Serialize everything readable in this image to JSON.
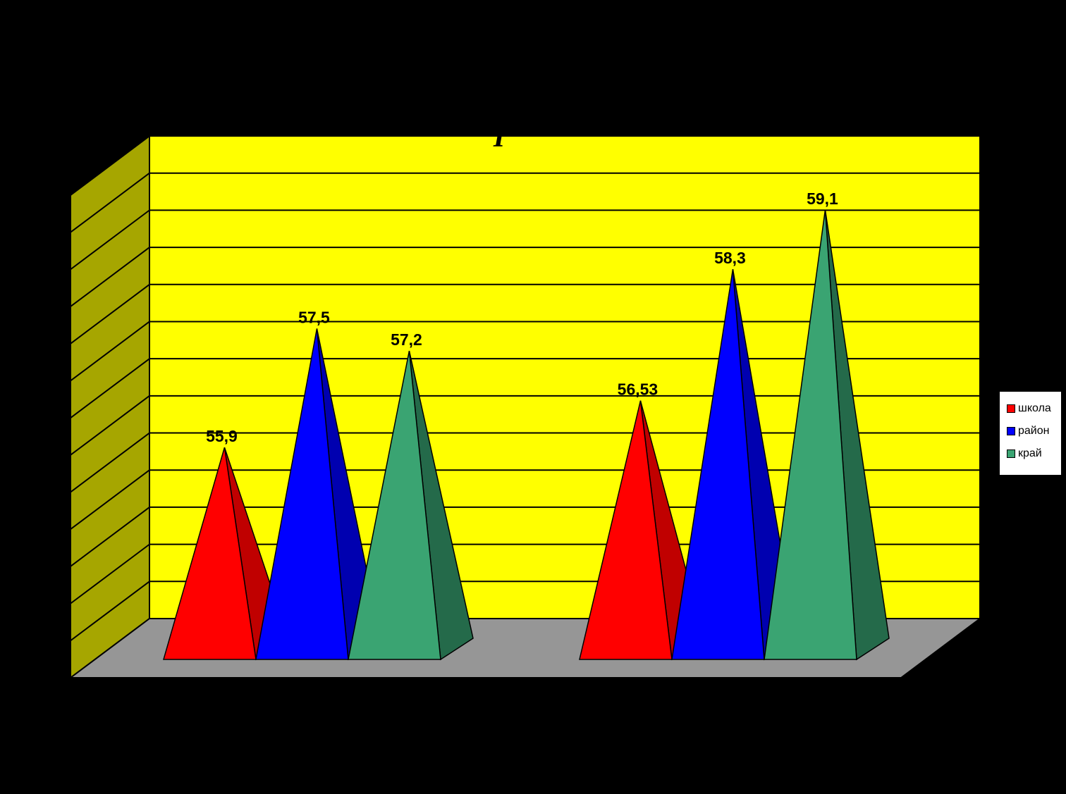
{
  "chart_data": {
    "type": "bar",
    "shape": "pyramid-3d",
    "title": "I",
    "categories": [
      "",
      ""
    ],
    "series": [
      {
        "name": "школа",
        "values": [
          55.9,
          56.53
        ],
        "labels": [
          "55,9",
          "56,53"
        ],
        "color": "#ff0000",
        "side_color": "#c00000"
      },
      {
        "name": "район",
        "values": [
          57.5,
          58.3
        ],
        "labels": [
          "57,5",
          "58,3"
        ],
        "color": "#0000ff",
        "side_color": "#0000b0"
      },
      {
        "name": "край",
        "values": [
          57.2,
          59.1
        ],
        "labels": [
          "57,2",
          "59,1"
        ],
        "color": "#3aa472",
        "side_color": "#246a4a"
      }
    ],
    "ylim": [
      53.5,
      60
    ],
    "gridline_step": 0.5,
    "grid": true,
    "legend_position": "right",
    "colors": {
      "page_background": "#000000",
      "back_wall": "#ffff00",
      "side_wall": "#a6a600",
      "floor": "#969696"
    }
  }
}
